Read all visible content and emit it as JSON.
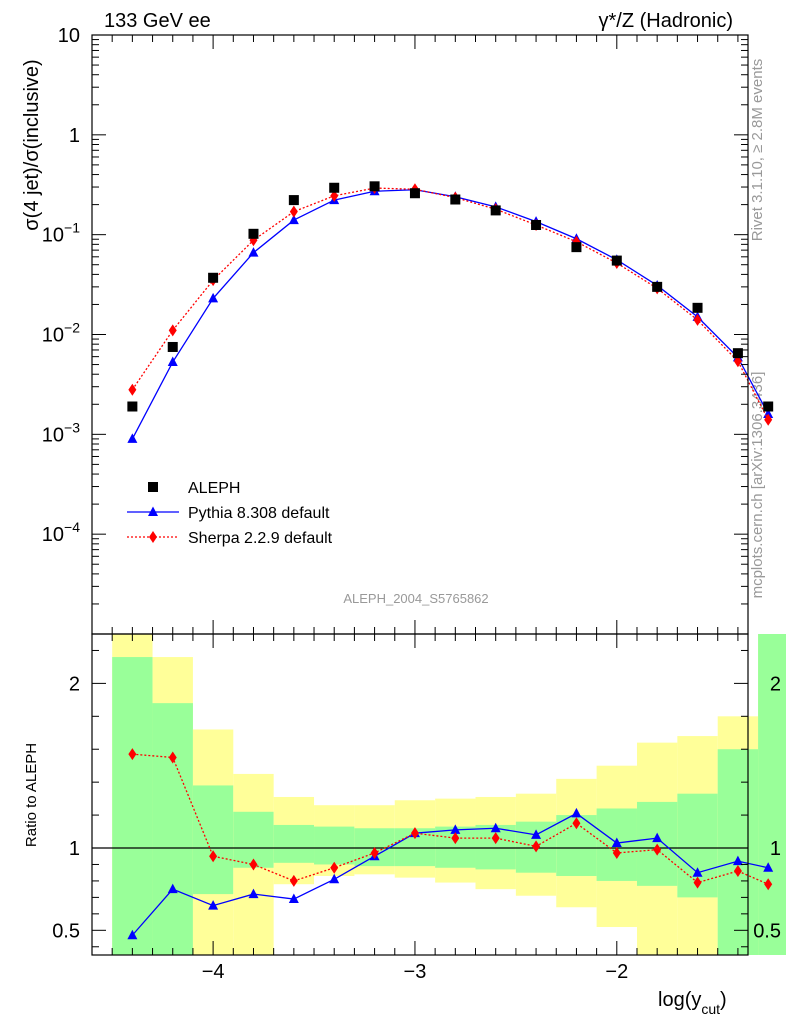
{
  "header": {
    "left_label": "133 GeV ee",
    "right_label": "γ*/Z (Hadronic)"
  },
  "side_labels": {
    "rivet": "Rivet 3.1.10, ≥ 2.8M events",
    "mcplots": "mcplots.cern.ch [arXiv:1306.3436]"
  },
  "analysis_id": "ALEPH_2004_S5765862",
  "colors": {
    "data": "#000000",
    "pythia": "#0000ff",
    "sherpa": "#ff0000",
    "band_outer": "#ffff99",
    "band_inner": "#99ff99"
  },
  "chart_data": [
    {
      "type": "scatter",
      "ylabel": "σ(4 jet)/σ(inclusive)",
      "xlim": [
        -4.6,
        -1.35
      ],
      "ylim": [
        1e-05,
        10
      ],
      "log_y": true,
      "y_ticks": [
        {
          "value": 10,
          "label": "10"
        },
        {
          "value": 1,
          "label": "1"
        },
        {
          "value": 0.1,
          "label": "10",
          "exp": "−1"
        },
        {
          "value": 0.01,
          "label": "10",
          "exp": "−2"
        },
        {
          "value": 0.001,
          "label": "10",
          "exp": "−3"
        },
        {
          "value": 0.0001,
          "label": "10",
          "exp": "−4"
        }
      ],
      "legend_position": "bottom-left",
      "x": [
        -4.4,
        -4.2,
        -4.0,
        -3.8,
        -3.6,
        -3.4,
        -3.2,
        -3.0,
        -2.8,
        -2.6,
        -2.4,
        -2.2,
        -2.0,
        -1.8,
        -1.6,
        -1.4,
        -1.25
      ],
      "series": [
        {
          "name": "ALEPH",
          "marker": "square",
          "values": [
            0.0019,
            0.0075,
            0.037,
            0.102,
            0.222,
            0.295,
            0.305,
            0.26,
            0.225,
            0.175,
            0.125,
            0.075,
            0.055,
            0.03,
            0.0185,
            0.0065,
            0.0019
          ]
        },
        {
          "name": "Pythia 8.308 default",
          "marker": "triangle",
          "values": [
            0.0009,
            0.0053,
            0.023,
            0.066,
            0.14,
            0.222,
            0.272,
            0.282,
            0.24,
            0.19,
            0.135,
            0.091,
            0.056,
            0.031,
            0.015,
            0.0059,
            0.0016
          ]
        },
        {
          "name": "Sherpa 2.2.9 default",
          "marker": "diamond",
          "values": [
            0.0028,
            0.011,
            0.035,
            0.088,
            0.17,
            0.245,
            0.293,
            0.285,
            0.235,
            0.18,
            0.125,
            0.085,
            0.052,
            0.029,
            0.014,
            0.0054,
            0.0014
          ]
        }
      ]
    },
    {
      "type": "line",
      "ylabel": "Ratio to ALEPH",
      "xlabel": "log(y",
      "xlabel_sub": "cut",
      "xlabel_close": ")",
      "xlim": [
        -4.6,
        -1.35
      ],
      "ylim": [
        0.35,
        2.3
      ],
      "y_ticks": [
        {
          "value": 2,
          "label": "2"
        },
        {
          "value": 1,
          "label": "1"
        },
        {
          "value": 0.5,
          "label": "0.5"
        }
      ],
      "x_ticks": [
        {
          "value": -4,
          "label": "−4"
        },
        {
          "value": -3,
          "label": "−3"
        },
        {
          "value": -2,
          "label": "−2"
        }
      ],
      "x": [
        -4.4,
        -4.2,
        -4.0,
        -3.8,
        -3.6,
        -3.4,
        -3.2,
        -3.0,
        -2.8,
        -2.6,
        -2.4,
        -2.2,
        -2.0,
        -1.8,
        -1.6,
        -1.4,
        -1.25
      ],
      "bands": {
        "edges": [
          -4.5,
          -4.3,
          -4.1,
          -3.9,
          -3.7,
          -3.5,
          -3.3,
          -3.1,
          -2.9,
          -2.7,
          -2.5,
          -2.3,
          -2.1,
          -1.9,
          -1.7,
          -1.5,
          -1.3,
          -1.15
        ],
        "outer_low": [
          0.35,
          0.35,
          0.35,
          0.35,
          0.78,
          0.83,
          0.84,
          0.82,
          0.79,
          0.75,
          0.71,
          0.64,
          0.52,
          0.35,
          0.35,
          0.35,
          0.35
        ],
        "outer_high": [
          2.3,
          2.16,
          1.72,
          1.45,
          1.31,
          1.26,
          1.26,
          1.29,
          1.3,
          1.31,
          1.33,
          1.42,
          1.5,
          1.64,
          1.68,
          1.8,
          2.3
        ],
        "inner_low": [
          0.35,
          0.35,
          0.72,
          0.88,
          0.91,
          0.9,
          0.89,
          0.89,
          0.88,
          0.87,
          0.85,
          0.83,
          0.8,
          0.77,
          0.7,
          0.35,
          0.35
        ],
        "inner_high": [
          2.16,
          1.88,
          1.38,
          1.22,
          1.14,
          1.13,
          1.12,
          1.12,
          1.13,
          1.14,
          1.16,
          1.2,
          1.24,
          1.28,
          1.33,
          1.6,
          2.3
        ]
      },
      "series": [
        {
          "name": "Pythia 8.308 default",
          "marker": "triangle",
          "values": [
            0.47,
            0.75,
            0.65,
            0.72,
            0.69,
            0.81,
            0.95,
            1.09,
            1.11,
            1.12,
            1.08,
            1.21,
            1.03,
            1.06,
            0.85,
            0.92,
            0.88
          ]
        },
        {
          "name": "Sherpa 2.2.9 default",
          "marker": "diamond",
          "values": [
            1.57,
            1.55,
            0.95,
            0.9,
            0.8,
            0.88,
            0.97,
            1.09,
            1.06,
            1.06,
            1.01,
            1.15,
            0.97,
            0.99,
            0.79,
            0.86,
            0.78
          ]
        }
      ]
    }
  ]
}
